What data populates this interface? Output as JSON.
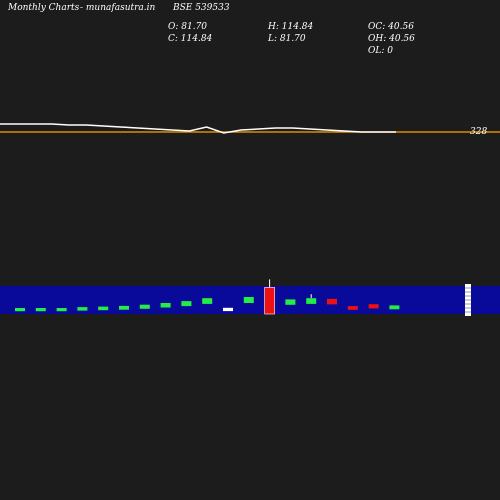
{
  "header": {
    "site_title": "Monthly Charts",
    "source": "- munafasutra.in",
    "symbol": "BSE 539533",
    "open": "O: 81.70",
    "close": "C: 114.84",
    "high": "H: 114.84",
    "low": "L: 81.70",
    "oc": "OC: 40.56",
    "oh": "OH: 40.56",
    "ol": "OL: 0"
  },
  "colors": {
    "background": "#1c1c1c",
    "price_line": "#ffffff",
    "reference_line": "#e08a00",
    "volume_band": "#0a0a9a",
    "up": "#22ee44",
    "down": "#ee1111",
    "flat": "#ffffff"
  },
  "chart_data": [
    {
      "type": "line",
      "series": [
        {
          "values": [
            336,
            336,
            336,
            336,
            335,
            335,
            334,
            333,
            332,
            331,
            330,
            329,
            333,
            327,
            330,
            331,
            332,
            332,
            331,
            330,
            329,
            328,
            328,
            328
          ]
        }
      ],
      "reference_line": 328,
      "annotations": [
        "328"
      ],
      "ylim": [
        300,
        360
      ]
    },
    {
      "type": "bar",
      "series": [
        {
          "values": [
            0.04,
            0.04,
            0.04,
            0.08,
            0.1,
            0.13,
            0.18,
            0.25,
            0.33,
            0.45,
            0.05,
            0.5,
            0.95,
            0.4,
            0.45,
            0.42,
            0.12,
            0.2,
            0.15
          ]
        }
      ],
      "bar_colors": [
        "up",
        "up",
        "up",
        "up",
        "up",
        "up",
        "up",
        "up",
        "up",
        "up",
        "flat",
        "up",
        "down",
        "up",
        "up",
        "down",
        "down",
        "down",
        "up"
      ],
      "ylim": [
        0,
        1
      ]
    }
  ]
}
